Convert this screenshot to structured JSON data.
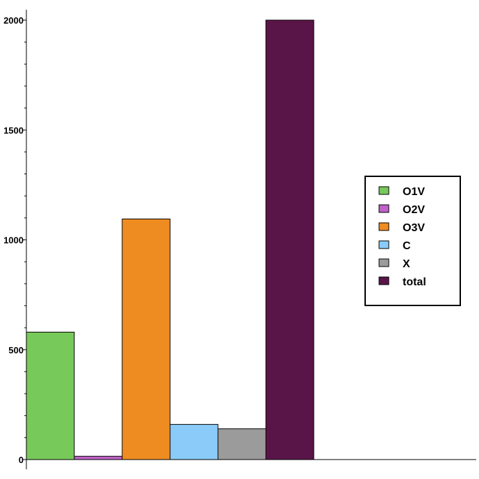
{
  "chart_data": {
    "type": "bar",
    "title": "",
    "xlabel": "",
    "ylabel": "",
    "ylim": [
      0,
      2000
    ],
    "yticks": [
      0,
      500,
      1000,
      1500,
      2000
    ],
    "y_minor_step": 100,
    "grid": false,
    "legend_position": "right",
    "series": [
      {
        "name": "O1V",
        "value": 580,
        "color": "#77c95a"
      },
      {
        "name": "O2V",
        "value": 15,
        "color": "#bf62c7"
      },
      {
        "name": "O3V",
        "value": 1095,
        "color": "#ef8c21"
      },
      {
        "name": "C",
        "value": 160,
        "color": "#8acbf9"
      },
      {
        "name": "X",
        "value": 140,
        "color": "#9b9b9b"
      },
      {
        "name": "total",
        "value": 2000,
        "color": "#5a1548"
      }
    ]
  }
}
